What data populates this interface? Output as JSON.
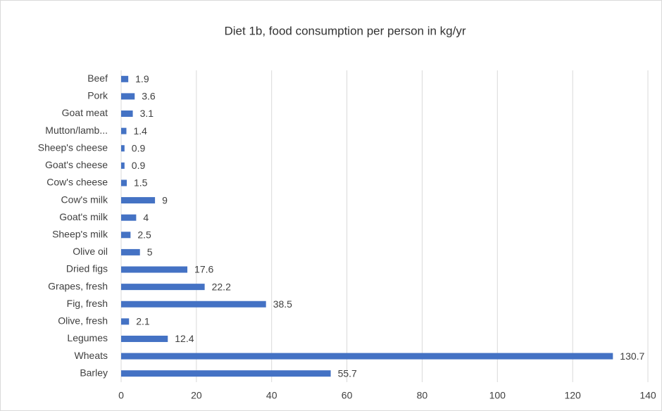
{
  "chart_data": {
    "type": "hbar",
    "title": "Diet 1b, food consumption per person in kg/yr",
    "categories": [
      "Beef",
      "Pork",
      "Goat meat",
      "Mutton/lamb...",
      "Sheep's cheese",
      "Goat's cheese",
      "Cow's cheese",
      "Cow's milk",
      "Goat's milk",
      "Sheep's milk",
      "Olive oil",
      "Dried figs",
      "Grapes, fresh",
      "Fig, fresh",
      "Olive, fresh",
      "Legumes",
      "Wheats",
      "Barley"
    ],
    "values": [
      1.9,
      3.6,
      3.1,
      1.4,
      0.9,
      0.9,
      1.5,
      9,
      4,
      2.5,
      5,
      17.6,
      22.2,
      38.5,
      2.1,
      12.4,
      130.7,
      55.7
    ],
    "color": "#4472c4",
    "xlim": [
      0,
      140
    ],
    "xticks": [
      0,
      20,
      40,
      60,
      80,
      100,
      120,
      140
    ],
    "grid": true
  }
}
